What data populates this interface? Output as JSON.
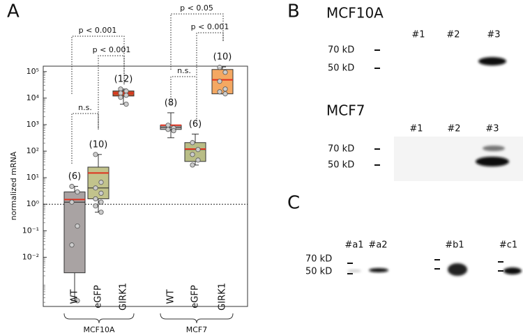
{
  "chart_data": {
    "type": "box",
    "panel_label": "A",
    "y_label": "normalized mRNA",
    "log_scale": true,
    "ylim": [
      0.00014,
      160000
    ],
    "yticks": [
      {
        "value": 0.01,
        "label": "10⁻²"
      },
      {
        "value": 0.1,
        "label": "10⁻¹"
      },
      {
        "value": 1,
        "label": "10⁰"
      },
      {
        "value": 10,
        "label": "10¹"
      },
      {
        "value": 100,
        "label": "10²"
      },
      {
        "value": 1000,
        "label": "10³"
      },
      {
        "value": 10000,
        "label": "10⁴"
      },
      {
        "value": 100000,
        "label": "10⁵"
      }
    ],
    "reference_line": 1,
    "categories": [
      "WT",
      "eGFP",
      "GIRK1",
      "WT",
      "eGFP",
      "GIRK1"
    ],
    "groups": [
      "MCF10A",
      "MCF7"
    ],
    "boxes": [
      {
        "n_label": "(6)",
        "color": "#a9a3a3",
        "min": 0.00023,
        "q1": 0.0026,
        "median": 1.2,
        "mean": 1.5,
        "q3": 2.9,
        "max": 4.7,
        "points": [
          4.7,
          2.9,
          1.2,
          0.15,
          0.029,
          0.00023
        ]
      },
      {
        "n_label": "(10)",
        "color": "#c2c38c",
        "min": 0.5,
        "q1": 1.6,
        "median": 4.1,
        "mean": 15,
        "q3": 25,
        "max": 75,
        "points": [
          75,
          6.7,
          4.1,
          2.6,
          1.6,
          1.2,
          0.86,
          0.5
        ]
      },
      {
        "n_label": "(12)",
        "color": "#c0502a",
        "min": 5900,
        "q1": 12000,
        "median": 15400,
        "mean": 15400,
        "q3": 18600,
        "max": 22000,
        "points": [
          22000,
          18400,
          15400,
          12800,
          10700,
          5900
        ]
      },
      {
        "n_label": "(8)",
        "color": "#b2adad",
        "min": 320,
        "q1": 660,
        "median": 800,
        "mean": 950,
        "q3": 950,
        "max": 2800,
        "points": [
          950,
          750,
          660,
          590
        ]
      },
      {
        "n_label": "(6)",
        "color": "#b9bd86",
        "min": 30,
        "q1": 41,
        "median": 115,
        "mean": 120,
        "q3": 210,
        "max": 440,
        "points": [
          210,
          115,
          75,
          46,
          30
        ]
      },
      {
        "n_label": "(10)",
        "color": "#f4a862",
        "min": 14500,
        "q1": 14500,
        "median": 49000,
        "mean": 49000,
        "q3": 120000,
        "max": 150000,
        "points": [
          144000,
          94000,
          43000,
          22000,
          17300,
          14500
        ]
      }
    ],
    "mean_color": "#e0301e",
    "annotations": [
      "p < 0.001",
      "p < 0.001",
      "n.s.",
      "p < 0.05",
      "p < 0.001",
      "n.s."
    ]
  },
  "panel_b": {
    "panel_label": "B",
    "blots": [
      {
        "title": "MCF10A",
        "lanes": [
          "#1",
          "#2",
          "#3"
        ],
        "markers": [
          "70 kD",
          "50 kD"
        ]
      },
      {
        "title": "MCF7",
        "lanes": [
          "#1",
          "#2",
          "#3"
        ],
        "markers": [
          "70 kD",
          "50 kD"
        ]
      }
    ]
  },
  "panel_c": {
    "panel_label": "C",
    "lanes": [
      "#a1",
      "#a2",
      "#b1",
      "#c1"
    ],
    "markers": [
      "70 kD",
      "50 kD"
    ]
  }
}
